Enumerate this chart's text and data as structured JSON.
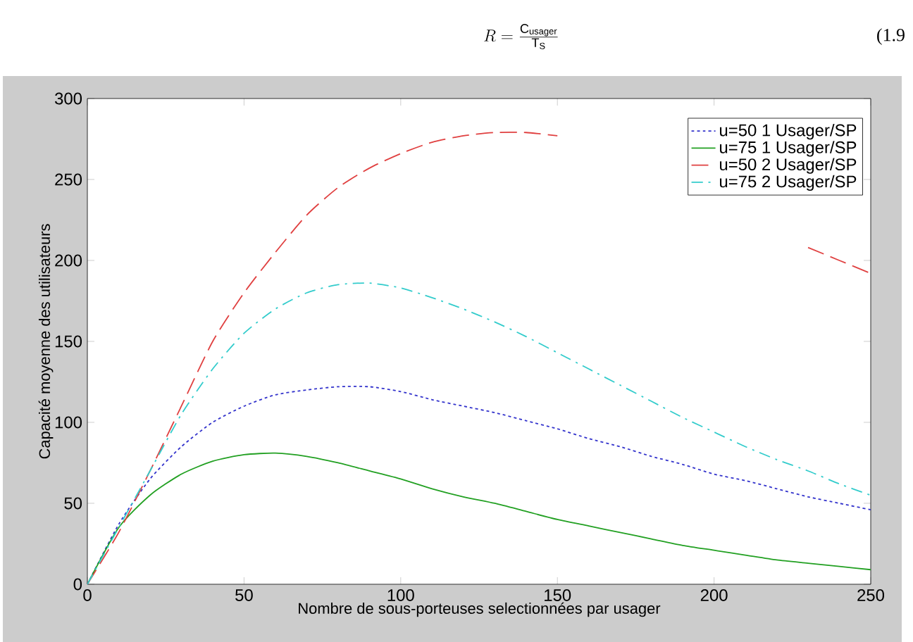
{
  "chart_data": {
    "type": "line",
    "title": "R = \\frac{\\mathrm{C}_{\\mathrm{usager}}}{\\mathrm{T}_{\\mathrm{S}}}",
    "annotations": [
      "(1.9"
    ],
    "xlabel": "Nombre de sous-porteuses selectionnées par usager",
    "ylabel": "Capacité moyenne des utilisateurs",
    "x": [
      0,
      10,
      20,
      30,
      40,
      50,
      60,
      70,
      80,
      90,
      100,
      110,
      120,
      130,
      140,
      150,
      160,
      170,
      180,
      190,
      200,
      210,
      220,
      230,
      240,
      250
    ],
    "series": [
      {
        "name": "u=50 1 Usager/SP",
        "color": "#3333cc",
        "line_style": "dotted",
        "values": [
          0,
          37,
          65,
          85,
          100,
          110,
          117,
          120,
          122,
          122,
          119,
          114,
          110,
          106,
          101,
          96,
          90,
          85,
          79,
          74,
          68,
          64,
          59,
          54,
          50,
          46
        ]
      },
      {
        "name": "u=75 1 Usager/SP",
        "color": "#22a022",
        "line_style": "solid",
        "values": [
          0,
          35,
          55,
          68,
          76,
          80,
          81,
          79,
          75,
          70,
          65,
          59,
          54,
          50,
          45,
          40,
          36,
          32,
          28,
          24,
          21,
          18,
          15,
          13,
          11,
          9
        ]
      },
      {
        "name": "u=50 2 Usager/SP",
        "color": "#e04040",
        "line_style": "dashed",
        "values": [
          0,
          32,
          70,
          110,
          150,
          180,
          205,
          228,
          245,
          257,
          266,
          273,
          277,
          279,
          279,
          277,
          null,
          null,
          null,
          null,
          null,
          null,
          null,
          208,
          200,
          192
        ]
      },
      {
        "name": "u=75 2 Usager/SP",
        "color": "#33cccc",
        "line_style": "dashdot",
        "values": [
          0,
          35,
          70,
          105,
          133,
          155,
          170,
          180,
          185,
          186,
          183,
          177,
          170,
          162,
          153,
          143,
          133,
          123,
          113,
          103,
          94,
          85,
          77,
          70,
          62,
          55
        ]
      }
    ],
    "xlim": [
      0,
      250
    ],
    "ylim": [
      0,
      300
    ],
    "xticks": [
      0,
      50,
      100,
      150,
      200,
      250
    ],
    "yticks": [
      0,
      50,
      100,
      150,
      200,
      250,
      300
    ],
    "grid": false,
    "legend": "top right",
    "marker": "none"
  }
}
